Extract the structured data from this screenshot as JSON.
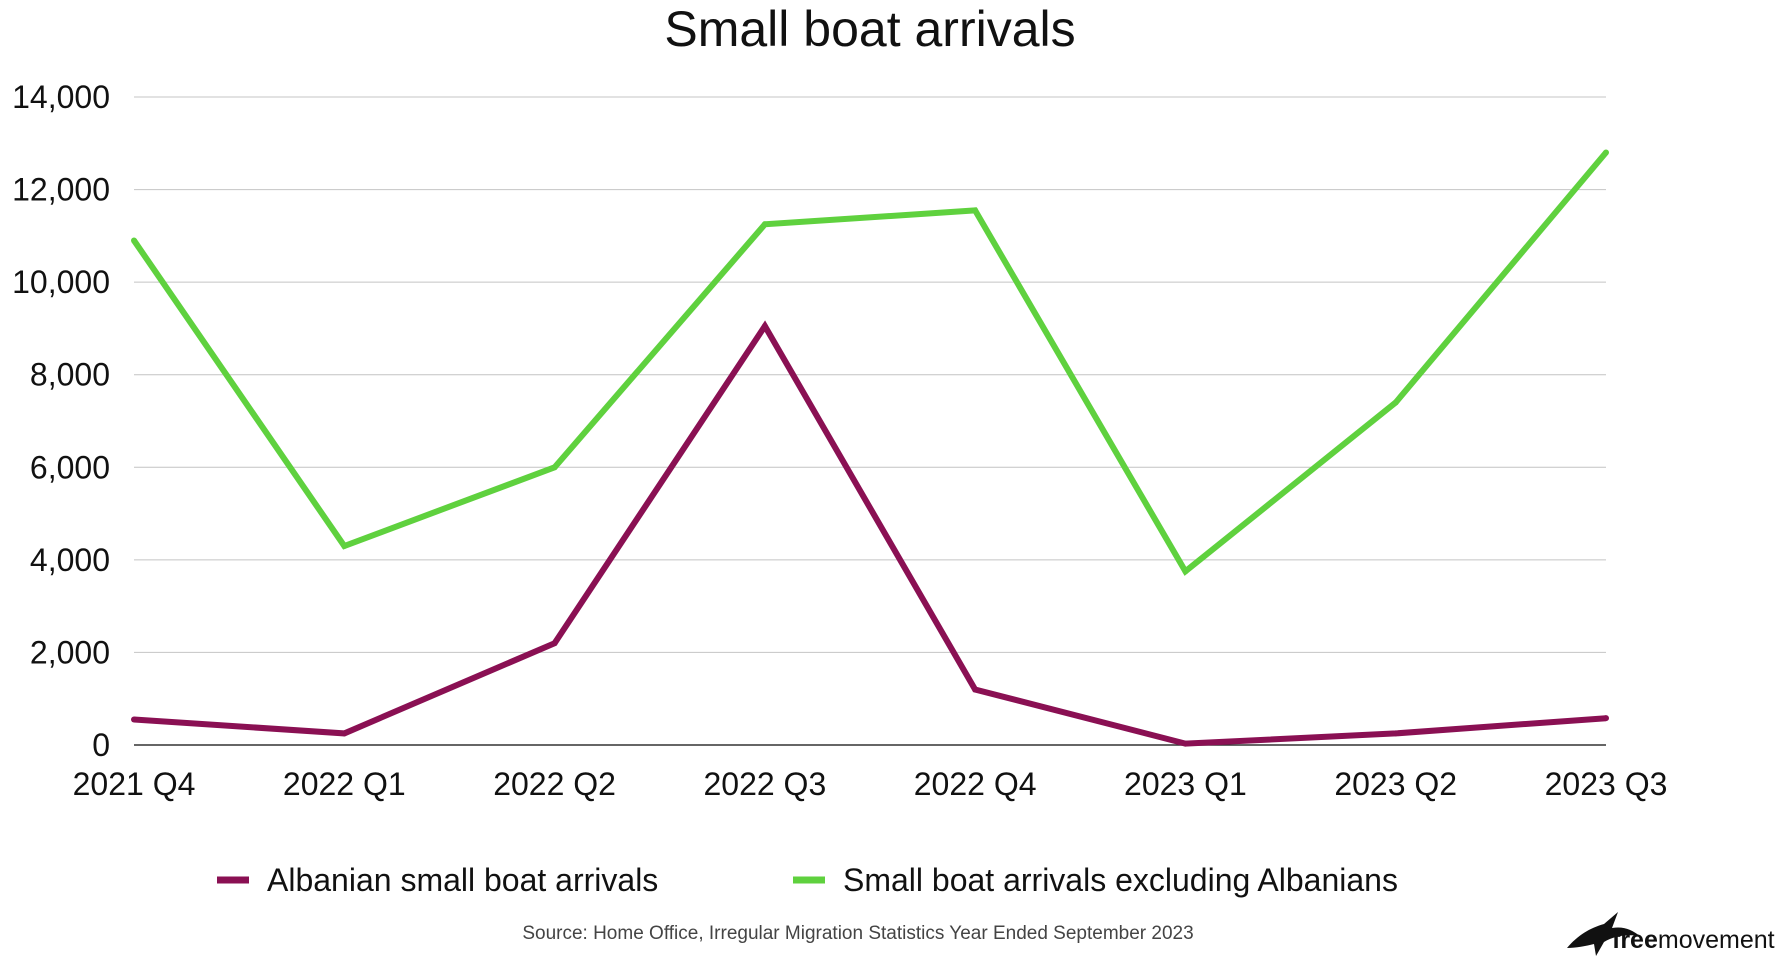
{
  "chart_data": {
    "type": "line",
    "title": "Small boat arrivals",
    "xlabel": "",
    "ylabel": "",
    "categories": [
      "2021 Q4",
      "2022 Q1",
      "2022 Q2",
      "2022 Q3",
      "2022 Q4",
      "2023 Q1",
      "2023 Q2",
      "2023 Q3"
    ],
    "ylim": [
      0,
      14000
    ],
    "yticks": [
      0,
      2000,
      4000,
      6000,
      8000,
      10000,
      12000,
      14000
    ],
    "ytick_labels": [
      "0",
      "2,000",
      "4,000",
      "6,000",
      "8,000",
      "10,000",
      "12,000",
      "14,000"
    ],
    "grid": true,
    "legend_position": "bottom",
    "series": [
      {
        "name": "Albanian small boat arrivals",
        "color": "#8a1053",
        "values": [
          550,
          250,
          2200,
          9050,
          1200,
          30,
          250,
          580
        ]
      },
      {
        "name": "Small boat arrivals excluding Albanians",
        "color": "#5fd13e",
        "values": [
          10900,
          4300,
          6000,
          11250,
          11550,
          3750,
          7400,
          12800
        ]
      }
    ]
  },
  "source": "Source: Home Office, Irregular Migration Statistics Year Ended September 2023",
  "logo": {
    "bold": "free",
    "regular": "movement"
  }
}
